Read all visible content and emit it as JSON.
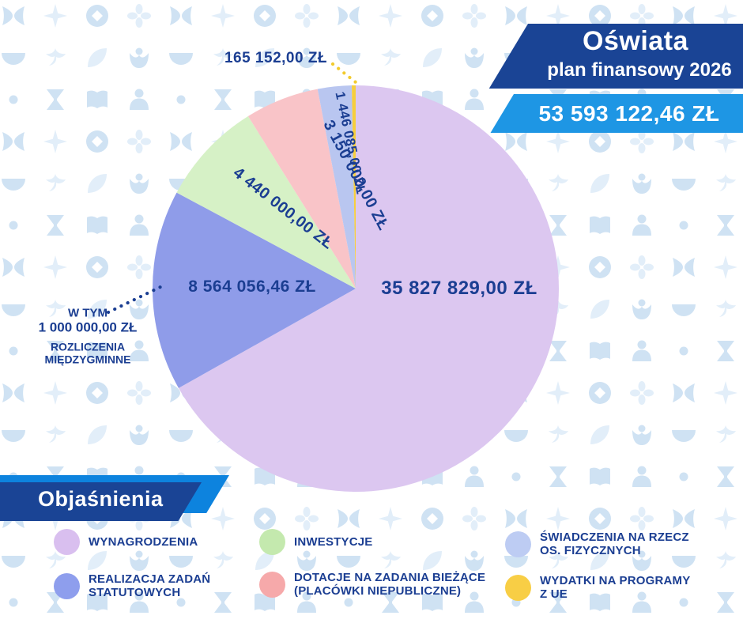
{
  "header": {
    "title": "Oświata",
    "subtitle": "plan finansowy 2026",
    "total": "53 593 122,46 ZŁ"
  },
  "annotation": {
    "line1": "W TYM",
    "line2": "1 000 000,00 ZŁ",
    "line3": "ROZLICZENIA",
    "line4": "MIĘDZYGMINNE"
  },
  "chart_data": {
    "type": "pie",
    "title": "Oświata plan finansowy 2026",
    "total_value": 53593122.46,
    "total_label": "53 593 122,46 ZŁ",
    "start_angle_deg": 0,
    "direction": "clockwise",
    "slices": [
      {
        "name": "WYNAGRODZENIA",
        "value": 35827829.0,
        "label": "35 827 829,00 ZŁ",
        "color": "#DCC7F0"
      },
      {
        "name": "REALIZACJA ZADAŃ STATUTOWYCH",
        "value": 8564056.46,
        "label": "8 564 056,46 ZŁ",
        "color": "#8F9CE9",
        "note": "W TYM 1 000 000,00 ZŁ ROZLICZENIA MIĘDZYGMINNE"
      },
      {
        "name": "INWESTYCJE",
        "value": 4440000.0,
        "label": "4 440 000,00 ZŁ",
        "color": "#D6F1C6"
      },
      {
        "name": "DOTACJE NA ZADANIA BIEŻĄCE (PLACÓWKI NIEPUBLICZNE)",
        "value": 3150000.0,
        "label": "3 150 000,00 ZŁ",
        "color": "#F9C4C8"
      },
      {
        "name": "ŚWIADCZENIA NA RZECZ OS. FIZYCZNYCH",
        "value": 1446085.0,
        "label": "1 446 085,00 ZŁ",
        "color": "#B9C6F0"
      },
      {
        "name": "WYDATKI NA PROGRAMY Z UE",
        "value": 165152.0,
        "label": "165 152,00 ZŁ",
        "color": "#F6CE3D"
      }
    ]
  },
  "legend": {
    "title": "Objaśnienia",
    "items": [
      {
        "label": "WYNAGRODZENIA",
        "color": "#D9BFEF"
      },
      {
        "label": "REALIZACJA ZADAŃ\nSTATUTOWYCH",
        "color": "#8E9EED"
      },
      {
        "label": "INWESTYCJE",
        "color": "#C4E9AE"
      },
      {
        "label": "DOTACJE NA ZADANIA BIEŻĄCE\n(PLACÓWKI NIEPUBLICZNE)",
        "color": "#F6A9AA"
      },
      {
        "label": "ŚWIADCZENIA NA RZECZ\nOS. FIZYCZNYCH",
        "color": "#BDCCF3"
      },
      {
        "label": "WYDATKI NA PROGRAMY\nZ UE",
        "color": "#F8CE45"
      }
    ]
  },
  "colors": {
    "text_navy": "#1B3E92",
    "banner_dark": "#1A4495",
    "banner_light": "#1E96E4",
    "stripe_light": "#0D83DE",
    "accent_yellow": "#F2CB2E",
    "pattern_light": "#E2EEF9",
    "pattern_mid": "#CFE2F3"
  }
}
